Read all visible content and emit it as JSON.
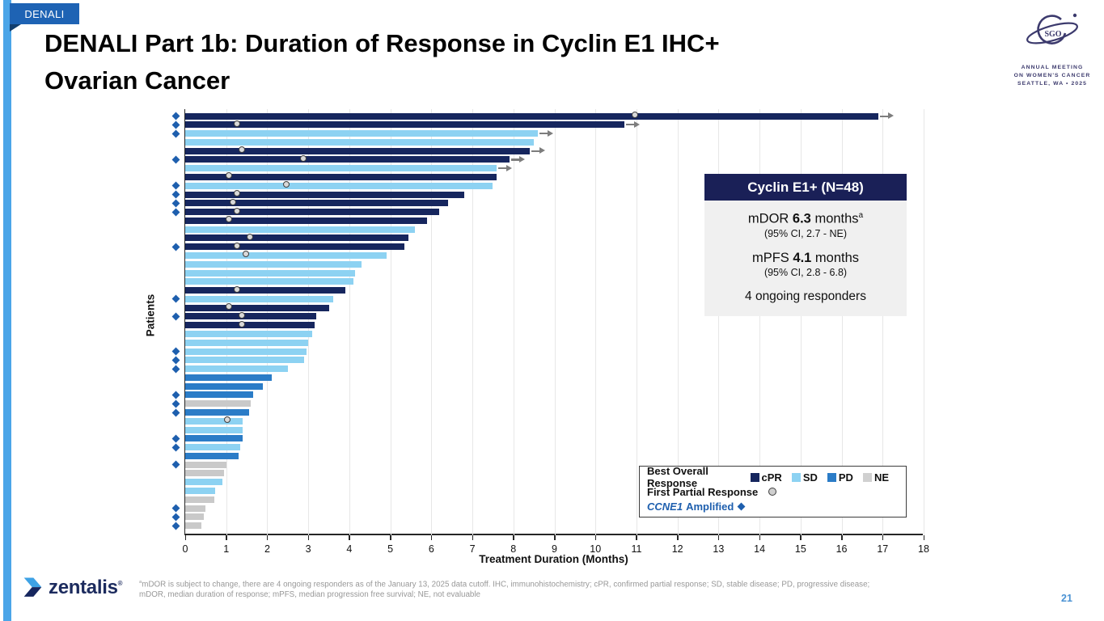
{
  "slide": {
    "tab_label": "DENALI",
    "title_line1": "DENALI Part 1b: Duration of Response in Cyclin E1 IHC+",
    "title_line2": "Ovarian Cancer",
    "page_number": "21"
  },
  "sgo_logo": {
    "acronym": "SGO",
    "line1": "ANNUAL MEETING",
    "line2": "ON WOMEN'S CANCER",
    "line3": "SEATTLE, WA  •  2025",
    "color": "#3C3A6D"
  },
  "zentalis_logo": {
    "text": "zentalis",
    "mark": "®"
  },
  "info_box": {
    "header": "Cyclin E1+ (N=48)",
    "mdor_prefix": "mDOR ",
    "mdor_value": "6.3",
    "mdor_suffix": " months",
    "mdor_sup": "a",
    "mdor_ci": "(95% CI, 2.7 - NE)",
    "mpfs_prefix": "mPFS ",
    "mpfs_value": "4.1",
    "mpfs_suffix": " months",
    "mpfs_ci": "(95% CI, 2.8 - 6.8)",
    "ongoing": "4 ongoing responders"
  },
  "legend": {
    "row1_label": "Best Overall Response",
    "items": [
      {
        "label": "cPR",
        "color": "#16265E"
      },
      {
        "label": "SD",
        "color": "#8DD2F2"
      },
      {
        "label": "PD",
        "color": "#2B7CC7"
      },
      {
        "label": "NE",
        "color": "#D0D0D0"
      }
    ],
    "row2_label": "First Partial Response",
    "row3_gene": "CCNE1",
    "row3_rest": "Amplified"
  },
  "footnote": {
    "sup": "a",
    "line1": "mDOR is subject to change, there are 4 ongoing responders as of the January 13, 2025 data cutoff. IHC, immunohistochemistry; cPR, confirmed partial response; SD, stable disease; PD, progressive disease;",
    "line2": "mDOR, median duration of response; mPFS, median progression free survival; NE, not evaluable"
  },
  "chart_data": {
    "type": "bar",
    "orientation": "horizontal-swimmer",
    "xlabel": "Treatment Duration (Months)",
    "ylabel": "Patients",
    "xlim": [
      0,
      18
    ],
    "xticks": [
      0,
      1,
      2,
      3,
      4,
      5,
      6,
      7,
      8,
      9,
      10,
      11,
      12,
      13,
      14,
      15,
      16,
      17,
      18
    ],
    "grid": true,
    "colors": {
      "cPR": "#16265E",
      "SD": "#8DD2F2",
      "PD": "#2B7CC7",
      "NE": "#C9C9C9"
    },
    "marker_colors": {
      "diamond": "#1E5FAE",
      "circle_fill": "#D9D9D9",
      "circle_stroke": "#3F3F3F",
      "arrow": "#7D7D7D"
    },
    "patients": [
      {
        "duration": 16.9,
        "response": "cPR",
        "first_pr": 11.0,
        "ongoing": true,
        "amplified": true
      },
      {
        "duration": 10.7,
        "response": "cPR",
        "first_pr": 1.3,
        "ongoing": true,
        "amplified": true
      },
      {
        "duration": 8.6,
        "response": "SD",
        "first_pr": null,
        "ongoing": true,
        "amplified": true
      },
      {
        "duration": 8.5,
        "response": "SD",
        "first_pr": null,
        "ongoing": false,
        "amplified": false
      },
      {
        "duration": 8.4,
        "response": "cPR",
        "first_pr": 1.4,
        "ongoing": true,
        "amplified": false
      },
      {
        "duration": 7.9,
        "response": "cPR",
        "first_pr": 2.9,
        "ongoing": true,
        "amplified": true
      },
      {
        "duration": 7.6,
        "response": "SD",
        "first_pr": null,
        "ongoing": true,
        "amplified": false
      },
      {
        "duration": 7.6,
        "response": "cPR",
        "first_pr": 1.1,
        "ongoing": false,
        "amplified": false
      },
      {
        "duration": 7.5,
        "response": "SD",
        "first_pr": 2.5,
        "ongoing": false,
        "amplified": true
      },
      {
        "duration": 6.8,
        "response": "cPR",
        "first_pr": 1.3,
        "ongoing": false,
        "amplified": true
      },
      {
        "duration": 6.4,
        "response": "cPR",
        "first_pr": 1.2,
        "ongoing": false,
        "amplified": true
      },
      {
        "duration": 6.2,
        "response": "cPR",
        "first_pr": 1.3,
        "ongoing": false,
        "amplified": true
      },
      {
        "duration": 5.9,
        "response": "cPR",
        "first_pr": 1.1,
        "ongoing": false,
        "amplified": false
      },
      {
        "duration": 5.6,
        "response": "SD",
        "first_pr": null,
        "ongoing": false,
        "amplified": false
      },
      {
        "duration": 5.45,
        "response": "cPR",
        "first_pr": 1.6,
        "ongoing": false,
        "amplified": false
      },
      {
        "duration": 5.35,
        "response": "cPR",
        "first_pr": 1.3,
        "ongoing": false,
        "amplified": true
      },
      {
        "duration": 4.9,
        "response": "SD",
        "first_pr": 1.5,
        "ongoing": false,
        "amplified": false
      },
      {
        "duration": 4.3,
        "response": "SD",
        "first_pr": null,
        "ongoing": false,
        "amplified": false
      },
      {
        "duration": 4.15,
        "response": "SD",
        "first_pr": null,
        "ongoing": false,
        "amplified": false
      },
      {
        "duration": 4.1,
        "response": "SD",
        "first_pr": null,
        "ongoing": false,
        "amplified": false
      },
      {
        "duration": 3.9,
        "response": "cPR",
        "first_pr": 1.3,
        "ongoing": false,
        "amplified": false
      },
      {
        "duration": 3.6,
        "response": "SD",
        "first_pr": null,
        "ongoing": false,
        "amplified": true
      },
      {
        "duration": 3.5,
        "response": "cPR",
        "first_pr": 1.1,
        "ongoing": false,
        "amplified": false
      },
      {
        "duration": 3.2,
        "response": "cPR",
        "first_pr": 1.4,
        "ongoing": false,
        "amplified": true
      },
      {
        "duration": 3.15,
        "response": "cPR",
        "first_pr": 1.4,
        "ongoing": false,
        "amplified": false
      },
      {
        "duration": 3.1,
        "response": "SD",
        "first_pr": null,
        "ongoing": false,
        "amplified": false
      },
      {
        "duration": 3.0,
        "response": "SD",
        "first_pr": null,
        "ongoing": false,
        "amplified": false
      },
      {
        "duration": 2.95,
        "response": "SD",
        "first_pr": null,
        "ongoing": false,
        "amplified": true
      },
      {
        "duration": 2.9,
        "response": "SD",
        "first_pr": null,
        "ongoing": false,
        "amplified": true
      },
      {
        "duration": 2.5,
        "response": "SD",
        "first_pr": null,
        "ongoing": false,
        "amplified": true
      },
      {
        "duration": 2.1,
        "response": "PD",
        "first_pr": null,
        "ongoing": false,
        "amplified": false
      },
      {
        "duration": 1.9,
        "response": "PD",
        "first_pr": null,
        "ongoing": false,
        "amplified": false
      },
      {
        "duration": 1.65,
        "response": "PD",
        "first_pr": null,
        "ongoing": false,
        "amplified": true
      },
      {
        "duration": 1.6,
        "response": "NE",
        "first_pr": null,
        "ongoing": false,
        "amplified": true
      },
      {
        "duration": 1.55,
        "response": "PD",
        "first_pr": null,
        "ongoing": false,
        "amplified": true
      },
      {
        "duration": 1.4,
        "response": "SD",
        "first_pr": 1.05,
        "ongoing": false,
        "amplified": false
      },
      {
        "duration": 1.4,
        "response": "SD",
        "first_pr": null,
        "ongoing": false,
        "amplified": false
      },
      {
        "duration": 1.4,
        "response": "PD",
        "first_pr": null,
        "ongoing": false,
        "amplified": true
      },
      {
        "duration": 1.35,
        "response": "SD",
        "first_pr": null,
        "ongoing": false,
        "amplified": true
      },
      {
        "duration": 1.3,
        "response": "PD",
        "first_pr": null,
        "ongoing": false,
        "amplified": false
      },
      {
        "duration": 1.0,
        "response": "NE",
        "first_pr": null,
        "ongoing": false,
        "amplified": true
      },
      {
        "duration": 0.95,
        "response": "NE",
        "first_pr": null,
        "ongoing": false,
        "amplified": false
      },
      {
        "duration": 0.9,
        "response": "SD",
        "first_pr": null,
        "ongoing": false,
        "amplified": false
      },
      {
        "duration": 0.72,
        "response": "SD",
        "first_pr": null,
        "ongoing": false,
        "amplified": false
      },
      {
        "duration": 0.7,
        "response": "NE",
        "first_pr": null,
        "ongoing": false,
        "amplified": false
      },
      {
        "duration": 0.5,
        "response": "NE",
        "first_pr": null,
        "ongoing": false,
        "amplified": true
      },
      {
        "duration": 0.45,
        "response": "NE",
        "first_pr": null,
        "ongoing": false,
        "amplified": true
      },
      {
        "duration": 0.4,
        "response": "NE",
        "first_pr": null,
        "ongoing": false,
        "amplified": true
      }
    ]
  }
}
